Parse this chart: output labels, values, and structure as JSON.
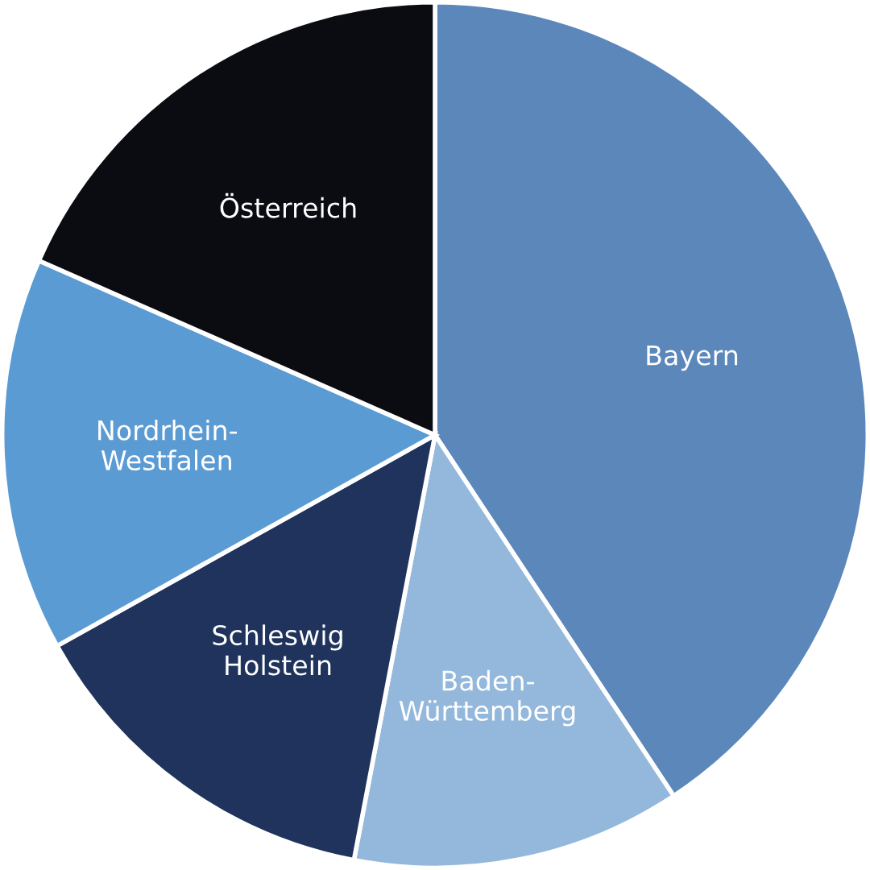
{
  "chart_data": {
    "type": "pie",
    "categories": [
      "Bayern",
      "Baden-\nWürttemberg",
      "Schleswig\nHolstein",
      "Nordrhein-\nWestfalen",
      "Österreich"
    ],
    "values": [
      40.7,
      12.3,
      13.9,
      14.7,
      18.4
    ],
    "colors": [
      "#5b87bb",
      "#94b8db",
      "#20335c",
      "#5b9bd3",
      "#0a0c12"
    ]
  }
}
